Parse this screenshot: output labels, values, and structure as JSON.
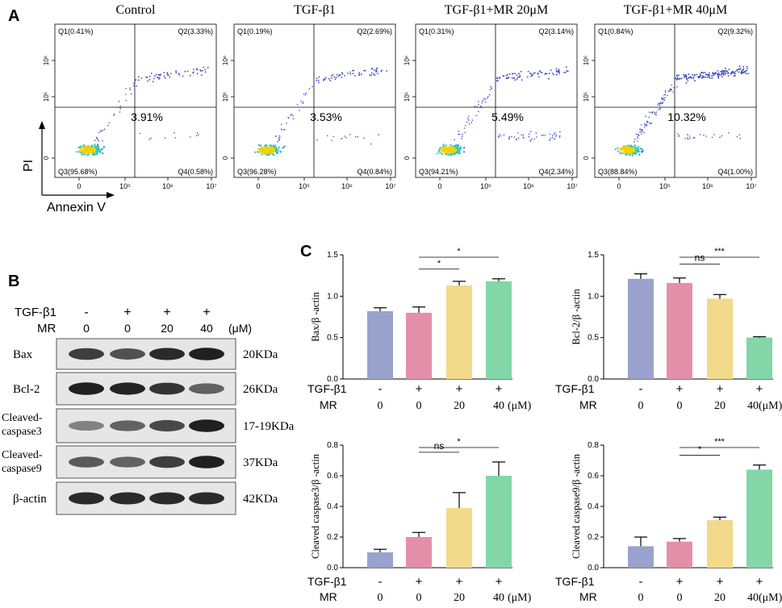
{
  "panel_labels": {
    "a": "A",
    "b": "B",
    "c": "C"
  },
  "flow": {
    "y_axis_label": "PI",
    "x_axis_label": "Annexin V",
    "y_ticks": [
      "10⁶",
      "10⁵",
      "0"
    ],
    "x_ticks": [
      "0",
      "10⁵",
      "10⁶",
      "10⁷"
    ],
    "panels": [
      {
        "title": "Control",
        "q1": "Q1(0.41%)",
        "q2": "Q2(3.33%)",
        "q3": "Q3(95.68%)",
        "q4": "Q4(0.58%)",
        "apoptosis": "3.91%"
      },
      {
        "title": "TGF-β1",
        "q1": "Q1(0.19%)",
        "q2": "Q2(2.69%)",
        "q3": "Q3(96.28%)",
        "q4": "Q4(0.84%)",
        "apoptosis": "3.53%"
      },
      {
        "title": "TGF-β1+MR 20μM",
        "q1": "Q1(0.31%)",
        "q2": "Q2(3.14%)",
        "q3": "Q3(94.21%)",
        "q4": "Q4(2.34%)",
        "apoptosis": "5.49%"
      },
      {
        "title": "TGF-β1+MR 40μM",
        "q1": "Q1(0.84%)",
        "q2": "Q2(9.32%)",
        "q3": "Q3(88.84%)",
        "q4": "Q4(1.00%)",
        "apoptosis": "10.32%"
      }
    ]
  },
  "western": {
    "row1_label": "TGF-β1",
    "row2_label": "MR",
    "row1_values": [
      "-",
      "+",
      "+",
      "+"
    ],
    "row2_values": [
      "0",
      "0",
      "20",
      "40"
    ],
    "unit": "(μM)",
    "blots": [
      {
        "name": "Bax",
        "size": "20KDa",
        "intensity": [
          0.75,
          0.65,
          0.85,
          0.9
        ]
      },
      {
        "name": "Bcl-2",
        "size": "26KDa",
        "intensity": [
          0.9,
          0.88,
          0.8,
          0.55
        ]
      },
      {
        "name": "Cleaved-caspase3",
        "line1": "Cleaved-",
        "line2": "caspase3",
        "size": "17-19KDa",
        "intensity": [
          0.35,
          0.55,
          0.7,
          0.9
        ]
      },
      {
        "name": "Cleaved-caspase9",
        "line1": "Cleaved-",
        "line2": "caspase9",
        "size": "37KDa",
        "intensity": [
          0.6,
          0.55,
          0.75,
          0.9
        ]
      },
      {
        "name": "β-actin",
        "size": "42KDa",
        "intensity": [
          0.85,
          0.85,
          0.85,
          0.85
        ]
      }
    ]
  },
  "chart_data": [
    {
      "type": "bar",
      "ylabel": "Bax/β -actin",
      "categories": [
        "Control",
        "TGF-β1",
        "TGF-β1+MR 20μM",
        "TGF-β1+MR 40μM"
      ],
      "values": [
        0.82,
        0.8,
        1.13,
        1.18
      ],
      "errors": [
        0.04,
        0.07,
        0.05,
        0.03
      ],
      "ylim": [
        0,
        1.5
      ],
      "yticks": [
        "0.0",
        "0.5",
        "1.0",
        "1.5"
      ],
      "row1": [
        "-",
        "+",
        "+",
        "+"
      ],
      "row2": [
        "0",
        "0",
        "20",
        "40"
      ],
      "unit": "(μM)",
      "unit_gap": true,
      "sig": [
        {
          "from": 1,
          "to": 2,
          "label": "*"
        },
        {
          "from": 1,
          "to": 3,
          "label": "*"
        }
      ],
      "colors": [
        "#98a2cc",
        "#e48fa9",
        "#f3d98a",
        "#82d6a7"
      ]
    },
    {
      "type": "bar",
      "ylabel": "Bcl-2/β -actin",
      "categories": [
        "Control",
        "TGF-β1",
        "TGF-β1+MR 20μM",
        "TGF-β1+MR 40μM"
      ],
      "values": [
        1.21,
        1.16,
        0.97,
        0.5
      ],
      "errors": [
        0.06,
        0.06,
        0.05,
        0.01
      ],
      "ylim": [
        0,
        1.5
      ],
      "yticks": [
        "0.0",
        "0.5",
        "1.0",
        "1.5"
      ],
      "row1": [
        "-",
        "+",
        "+",
        "+"
      ],
      "row2": [
        "0",
        "0",
        "20",
        "40"
      ],
      "unit": "(μM)",
      "unit_gap": false,
      "sig": [
        {
          "from": 1,
          "to": 2,
          "label": "ns"
        },
        {
          "from": 1,
          "to": 3,
          "label": "***"
        }
      ],
      "colors": [
        "#98a2cc",
        "#e48fa9",
        "#f3d98a",
        "#82d6a7"
      ]
    },
    {
      "type": "bar",
      "ylabel": "Cleaved caspase3/β -actin",
      "categories": [
        "Control",
        "TGF-β1",
        "TGF-β1+MR 20μM",
        "TGF-β1+MR 40μM"
      ],
      "values": [
        0.1,
        0.2,
        0.39,
        0.6
      ],
      "errors": [
        0.02,
        0.03,
        0.1,
        0.09
      ],
      "ylim": [
        0,
        0.8
      ],
      "yticks": [
        "0.0",
        "0.2",
        "0.4",
        "0.6",
        "0.8"
      ],
      "row1": [
        "-",
        "+",
        "+",
        "+"
      ],
      "row2": [
        "0",
        "0",
        "20",
        "40"
      ],
      "unit": "(μM)",
      "unit_gap": true,
      "sig": [
        {
          "from": 1,
          "to": 2,
          "label": "ns"
        },
        {
          "from": 1,
          "to": 3,
          "label": "*"
        }
      ],
      "colors": [
        "#98a2cc",
        "#e48fa9",
        "#f3d98a",
        "#82d6a7"
      ]
    },
    {
      "type": "bar",
      "ylabel": "Cleaved caspase9/β -actin",
      "categories": [
        "Control",
        "TGF-β1",
        "TGF-β1+MR 20μM",
        "TGF-β1+MR 40μM"
      ],
      "values": [
        0.14,
        0.17,
        0.31,
        0.64
      ],
      "errors": [
        0.06,
        0.02,
        0.02,
        0.03
      ],
      "ylim": [
        0,
        0.8
      ],
      "yticks": [
        "0.0",
        "0.2",
        "0.4",
        "0.6",
        "0.8"
      ],
      "row1": [
        "-",
        "+",
        "+",
        "+"
      ],
      "row2": [
        "0",
        "0",
        "20",
        "40"
      ],
      "unit": "(μM)",
      "unit_gap": false,
      "sig": [
        {
          "from": 1,
          "to": 2,
          "label": "*"
        },
        {
          "from": 1,
          "to": 3,
          "label": "***"
        }
      ],
      "colors": [
        "#98a2cc",
        "#e48fa9",
        "#f3d98a",
        "#82d6a7"
      ]
    }
  ]
}
